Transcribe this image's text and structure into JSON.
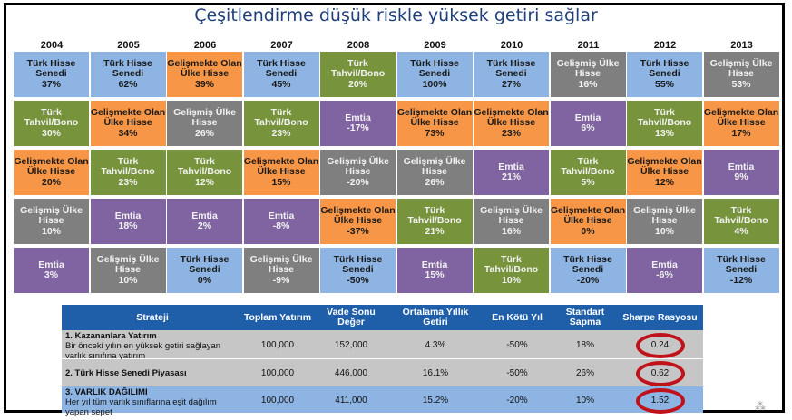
{
  "title": "Çeşitlendirme düşük riskle yüksek getiri sağlar",
  "colors": {
    "blue": "#8db4e2",
    "orange": "#f79646",
    "green": "#77933c",
    "purple": "#8064a2",
    "gray": "#7f7f7f",
    "header_blue": "#1f5ea8",
    "circle_red": "#c0121a"
  },
  "chart_data": [
    {
      "type": "table",
      "title": "Çeşitlendirme düşük riskle yüksek getiri sağlar",
      "columns": [
        "2004",
        "2005",
        "2006",
        "2007",
        "2008",
        "2009",
        "2010",
        "2011",
        "2012",
        "2013"
      ],
      "rows": [
        [
          {
            "label": "Türk Hisse Senedi",
            "value": "37%",
            "color": "blue"
          },
          {
            "label": "Türk Hisse Senedi",
            "value": "62%",
            "color": "blue"
          },
          {
            "label": "Gelişmekte Olan Ülke Hisse",
            "value": "39%",
            "color": "orange"
          },
          {
            "label": "Türk Hisse Senedi",
            "value": "45%",
            "color": "blue"
          },
          {
            "label": "Türk Tahvil/Bono",
            "value": "20%",
            "color": "green"
          },
          {
            "label": "Türk Hisse Senedi",
            "value": "100%",
            "color": "blue"
          },
          {
            "label": "Türk Hisse Senedi",
            "value": "27%",
            "color": "blue"
          },
          {
            "label": "Gelişmiş Ülke Hisse",
            "value": "16%",
            "color": "gray"
          },
          {
            "label": "Türk Hisse Senedi",
            "value": "55%",
            "color": "blue"
          },
          {
            "label": "Gelişmiş Ülke Hisse",
            "value": "53%",
            "color": "gray"
          }
        ],
        [
          {
            "label": "Türk Tahvil/Bono",
            "value": "30%",
            "color": "green"
          },
          {
            "label": "Gelişmekte Olan Ülke Hisse",
            "value": "34%",
            "color": "orange"
          },
          {
            "label": "Gelişmiş Ülke Hisse",
            "value": "26%",
            "color": "gray"
          },
          {
            "label": "Türk Tahvil/Bono",
            "value": "23%",
            "color": "green"
          },
          {
            "label": "Emtia",
            "value": "-17%",
            "color": "purple"
          },
          {
            "label": "Gelişmekte Olan Ülke Hisse",
            "value": "73%",
            "color": "orange"
          },
          {
            "label": "Gelişmekte Olan Ülke Hisse",
            "value": "23%",
            "color": "orange"
          },
          {
            "label": "Emtia",
            "value": "6%",
            "color": "purple"
          },
          {
            "label": "Türk Tahvil/Bono",
            "value": "13%",
            "color": "green"
          },
          {
            "label": "Gelişmekte Olan Ülke Hisse",
            "value": "17%",
            "color": "orange"
          }
        ],
        [
          {
            "label": "Gelişmekte Olan Ülke Hisse",
            "value": "20%",
            "color": "orange"
          },
          {
            "label": "Türk Tahvil/Bono",
            "value": "23%",
            "color": "green"
          },
          {
            "label": "Türk Tahvil/Bono",
            "value": "12%",
            "color": "green"
          },
          {
            "label": "Gelişmekte Olan Ülke Hisse",
            "value": "15%",
            "color": "orange"
          },
          {
            "label": "Gelişmiş Ülke Hisse",
            "value": "-20%",
            "color": "gray"
          },
          {
            "label": "Gelişmiş Ülke Hisse",
            "value": "26%",
            "color": "gray"
          },
          {
            "label": "Emtia",
            "value": "21%",
            "color": "purple"
          },
          {
            "label": "Türk Tahvil/Bono",
            "value": "5%",
            "color": "green"
          },
          {
            "label": "Gelişmekte Olan Ülke Hisse",
            "value": "12%",
            "color": "orange"
          },
          {
            "label": "Emtia",
            "value": "9%",
            "color": "purple"
          }
        ],
        [
          {
            "label": "Gelişmiş Ülke Hisse",
            "value": "10%",
            "color": "gray"
          },
          {
            "label": "Emtia",
            "value": "18%",
            "color": "purple"
          },
          {
            "label": "Emtia",
            "value": "2%",
            "color": "purple"
          },
          {
            "label": "Emtia",
            "value": "-8%",
            "color": "purple"
          },
          {
            "label": "Gelişmekte Olan Ülke Hisse",
            "value": "-37%",
            "color": "orange"
          },
          {
            "label": "Türk Tahvil/Bono",
            "value": "21%",
            "color": "green"
          },
          {
            "label": "Gelişmiş Ülke Hisse",
            "value": "16%",
            "color": "gray"
          },
          {
            "label": "Gelişmekte Olan Ülke Hisse",
            "value": "0%",
            "color": "orange"
          },
          {
            "label": "Gelişmiş Ülke Hisse",
            "value": "10%",
            "color": "gray"
          },
          {
            "label": "Türk Tahvil/Bono",
            "value": "4%",
            "color": "green"
          }
        ],
        [
          {
            "label": "Emtia",
            "value": "3%",
            "color": "purple"
          },
          {
            "label": "Gelişmiş Ülke Hisse",
            "value": "10%",
            "color": "gray"
          },
          {
            "label": "Türk Hisse Senedi",
            "value": "0%",
            "color": "blue"
          },
          {
            "label": "Gelişmiş Ülke Hisse",
            "value": "-9%",
            "color": "gray"
          },
          {
            "label": "Türk Hisse Senedi",
            "value": "-50%",
            "color": "blue"
          },
          {
            "label": "Emtia",
            "value": "15%",
            "color": "purple"
          },
          {
            "label": "Türk Tahvil/Bono",
            "value": "10%",
            "color": "green"
          },
          {
            "label": "Türk Hisse Senedi",
            "value": "-20%",
            "color": "blue"
          },
          {
            "label": "Emtia",
            "value": "-6%",
            "color": "purple"
          },
          {
            "label": "Türk Hisse Senedi",
            "value": "-12%",
            "color": "blue"
          }
        ]
      ]
    },
    {
      "type": "table",
      "headers": [
        "Strateji",
        "Toplam Yatırım",
        "Vade Sonu Değer",
        "Ortalama Yıllık Getiri",
        "En Kötü Yıl",
        "Standart Sapma",
        "Sharpe Rasyosu"
      ],
      "rows": [
        {
          "name": "1. Kazananlara Yatırım",
          "desc": "Bir önceki yılın en yüksek getiri sağlayan varlık sınıfına yatırım",
          "investment": "100,000",
          "final": "152,000",
          "avg": "4.3%",
          "worst": "-50%",
          "std": "18%",
          "sharpe": "0.24"
        },
        {
          "name": "2. Türk Hisse Senedi Piyasası",
          "desc": "",
          "investment": "100,000",
          "final": "446,000",
          "avg": "16.1%",
          "worst": "-50%",
          "std": "26%",
          "sharpe": "0.62"
        },
        {
          "name": "3. VARLIK DAĞILIMI",
          "desc": "Her yıl tüm varlık sınıflarına eşit dağılım yapan sepet",
          "investment": "100,000",
          "final": "411,000",
          "avg": "15.2%",
          "worst": "-20%",
          "std": "10%",
          "sharpe": "1.52"
        }
      ]
    }
  ],
  "footnote_mark": "⁂"
}
